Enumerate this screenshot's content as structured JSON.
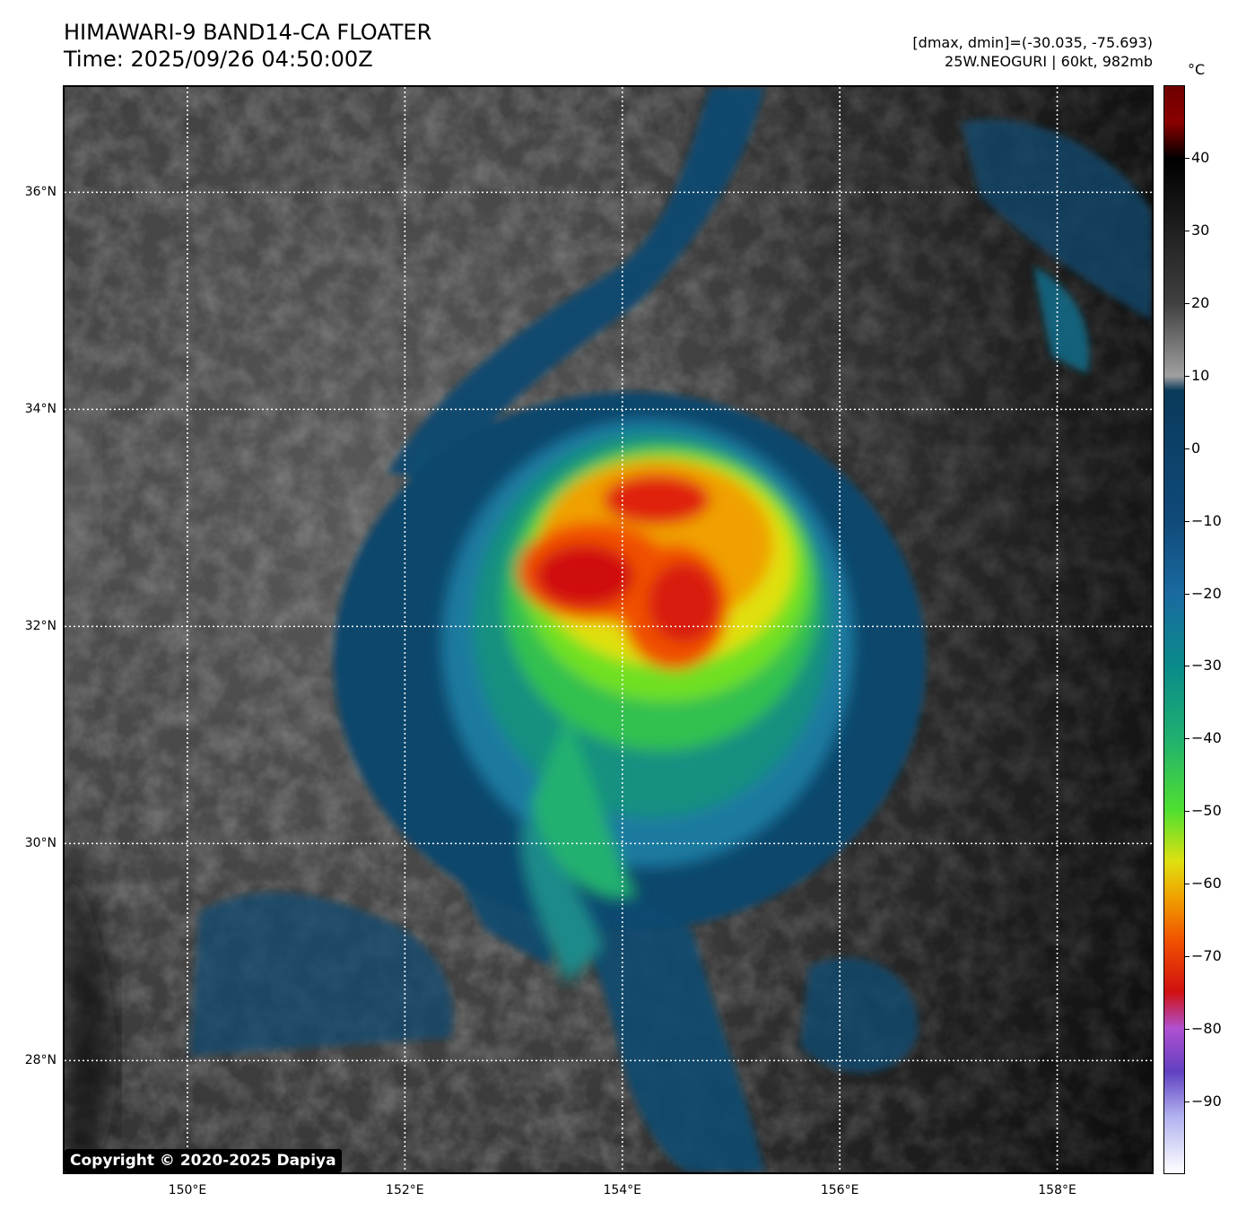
{
  "header": {
    "title_line1": "HIMAWARI-9 BAND14-CA FLOATER",
    "title_line2": "Time: 2025/09/26 04:50:00Z",
    "info_line1": "[dmax, dmin]=(-30.035, -75.693)",
    "info_line2": "25W.NEOGURI | 60kt, 982mb"
  },
  "map": {
    "lat_labels": [
      "36°N",
      "34°N",
      "32°N",
      "30°N",
      "28°N"
    ],
    "lon_labels": [
      "150°E",
      "152°E",
      "154°E",
      "156°E",
      "158°E"
    ],
    "lat_values": [
      36,
      34,
      32,
      30,
      28
    ],
    "lon_values": [
      150,
      152,
      154,
      156,
      158
    ],
    "lat_range": [
      26.97,
      36.97
    ],
    "lon_range": [
      148.87,
      158.87
    ],
    "grid": "dotted white",
    "copyright": "Copyright © 2020-2025 Dapiya"
  },
  "colorbar": {
    "unit": "°C",
    "labels": [
      "40",
      "30",
      "20",
      "10",
      "0",
      "−10",
      "−20",
      "−30",
      "−40",
      "−50",
      "−60",
      "−70",
      "−80",
      "−90"
    ],
    "values": [
      40,
      30,
      20,
      10,
      0,
      -10,
      -20,
      -30,
      -40,
      -50,
      -60,
      -70,
      -80,
      -90
    ],
    "range": [
      -100,
      50
    ],
    "stops": [
      {
        "v": 50,
        "c": "#6e0000"
      },
      {
        "v": 45,
        "c": "#8a0000"
      },
      {
        "v": 40,
        "c": "#000000"
      },
      {
        "v": 20,
        "c": "#404040"
      },
      {
        "v": 10,
        "c": "#a0a0a0"
      },
      {
        "v": 8,
        "c": "#0a3a5a"
      },
      {
        "v": -10,
        "c": "#104a7a"
      },
      {
        "v": -20,
        "c": "#1a6aa0"
      },
      {
        "v": -30,
        "c": "#0a8a8a"
      },
      {
        "v": -40,
        "c": "#20b070"
      },
      {
        "v": -50,
        "c": "#50e030"
      },
      {
        "v": -57,
        "c": "#e0e010"
      },
      {
        "v": -62,
        "c": "#f0a000"
      },
      {
        "v": -68,
        "c": "#f05000"
      },
      {
        "v": -75,
        "c": "#d01010"
      },
      {
        "v": -80,
        "c": "#b050d0"
      },
      {
        "v": -86,
        "c": "#6040c0"
      },
      {
        "v": -92,
        "c": "#b0b0f0"
      },
      {
        "v": -100,
        "c": "#ffffff"
      }
    ]
  }
}
